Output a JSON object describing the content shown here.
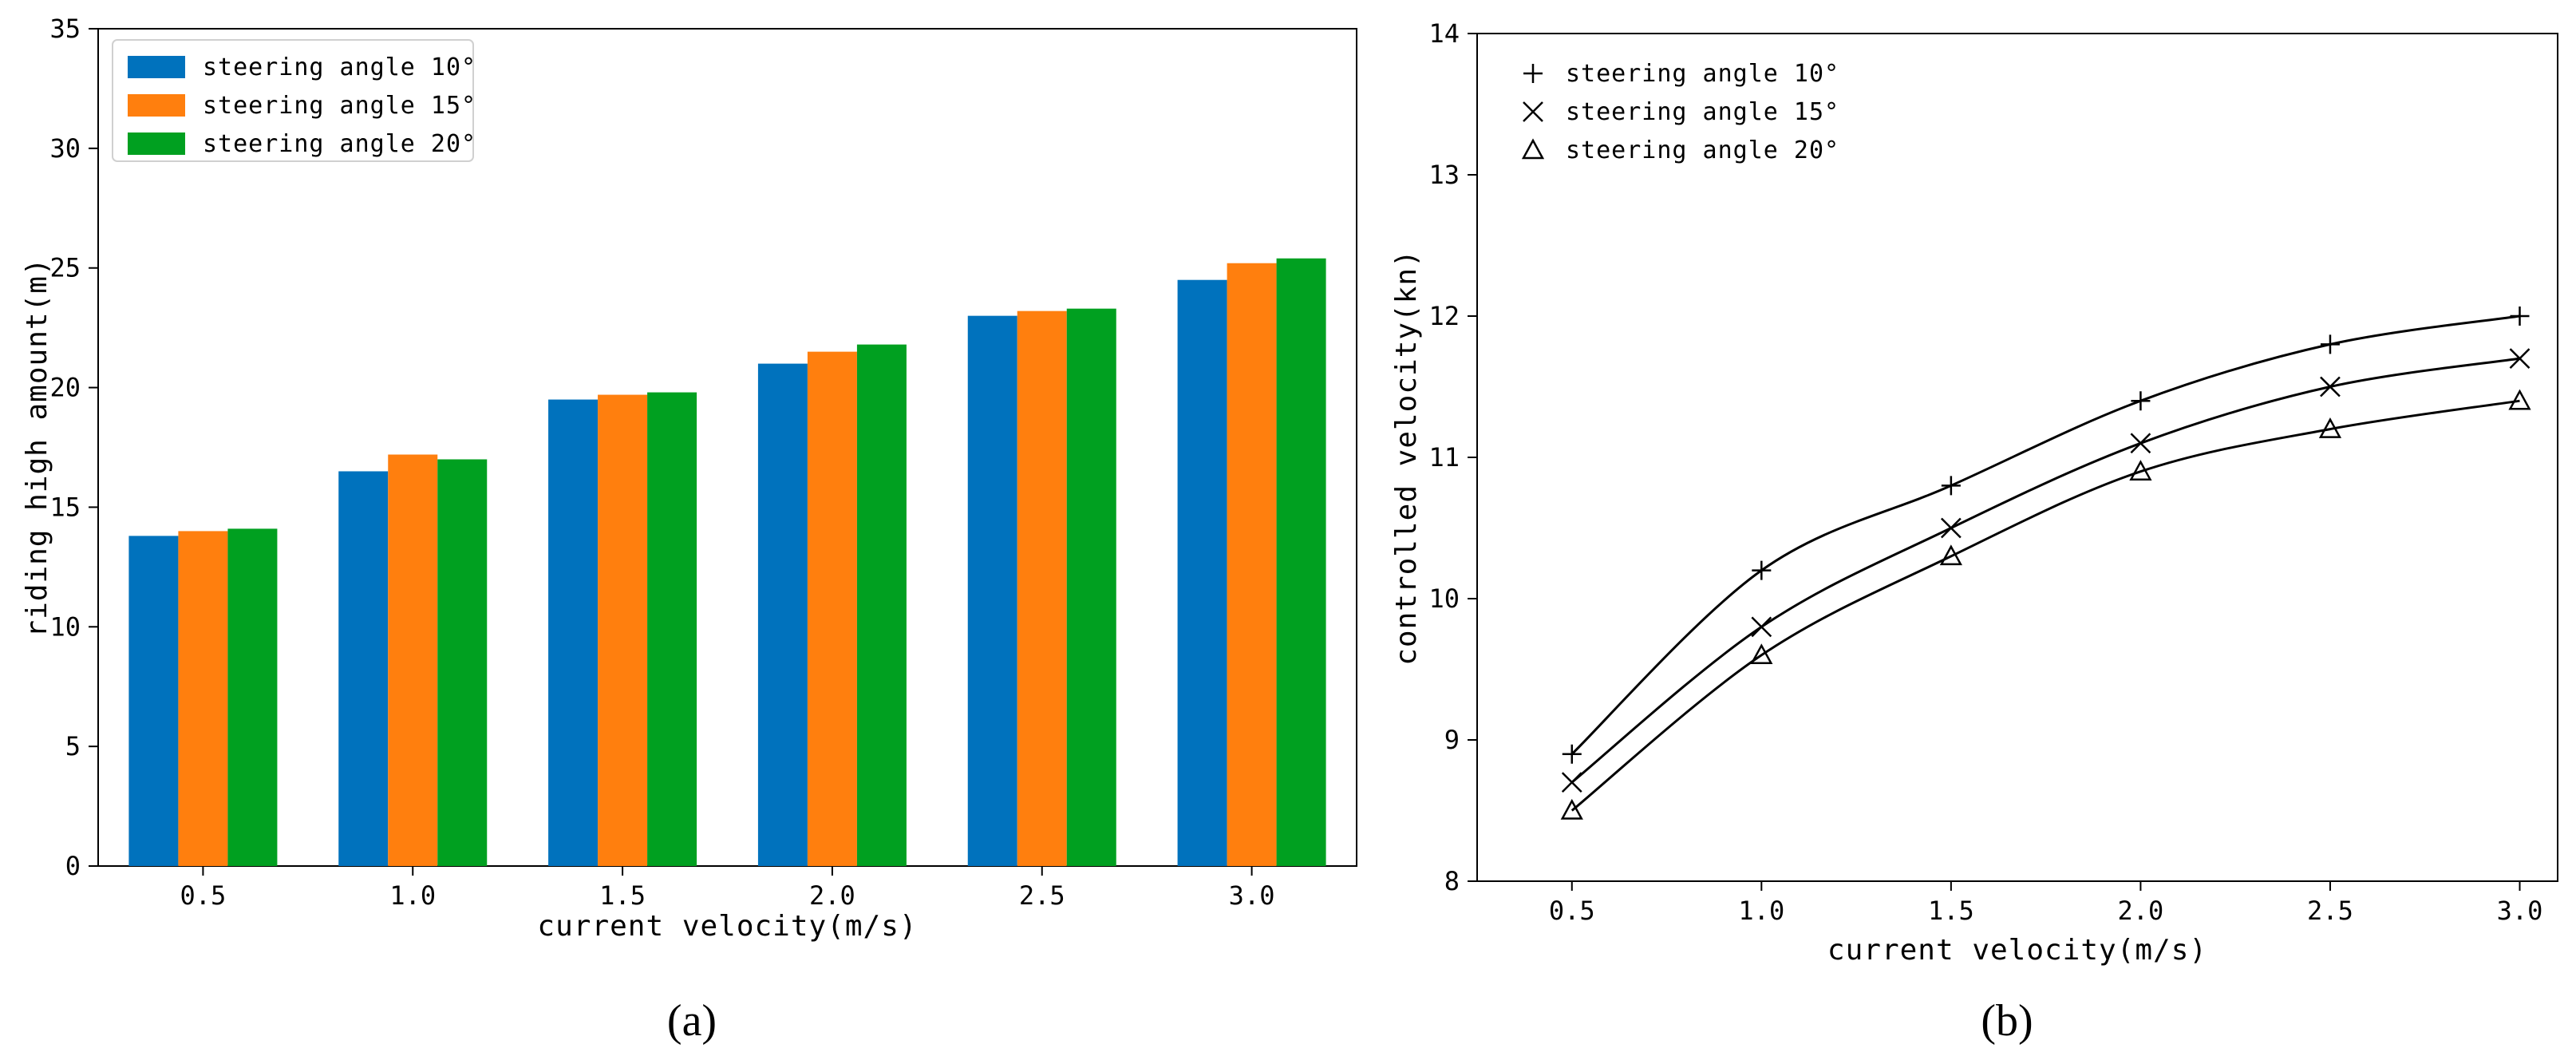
{
  "chart_data": [
    {
      "type": "bar",
      "panel_label": "a",
      "title": "",
      "xlabel": "current velocity(m/s)",
      "ylabel": "riding high amount(m)",
      "categories": [
        "0.5",
        "1.0",
        "1.5",
        "2.0",
        "2.5",
        "3.0"
      ],
      "ylim": [
        0,
        35
      ],
      "yticks": [
        "0",
        "5",
        "10",
        "15",
        "20",
        "25",
        "30",
        "35"
      ],
      "grid": false,
      "legend_position": "top-left",
      "series": [
        {
          "name": "steering angle 10°",
          "color": "#0072BD",
          "values": [
            13.8,
            16.5,
            19.5,
            21.0,
            23.0,
            24.5
          ]
        },
        {
          "name": "steering angle 15°",
          "color": "#FF7F0E",
          "values": [
            14.0,
            17.2,
            19.7,
            21.5,
            23.2,
            25.2
          ]
        },
        {
          "name": "steering angle 20°",
          "color": "#00A020",
          "values": [
            14.1,
            17.0,
            19.8,
            21.8,
            23.3,
            25.4
          ]
        }
      ]
    },
    {
      "type": "line",
      "panel_label": "b",
      "title": "",
      "xlabel": "current velocity(m/s)",
      "ylabel": "controlled velocity(kn)",
      "x": [
        0.5,
        1.0,
        1.5,
        2.0,
        2.5,
        3.0
      ],
      "xticks": [
        "0.5",
        "1.0",
        "1.5",
        "2.0",
        "2.5",
        "3.0"
      ],
      "xlim": [
        0.25,
        3.1
      ],
      "ylim": [
        8,
        14
      ],
      "yticks": [
        "8",
        "9",
        "10",
        "11",
        "12",
        "13",
        "14"
      ],
      "grid": false,
      "legend_position": "top-left",
      "series": [
        {
          "name": "steering angle 10°",
          "marker": "plus",
          "values": [
            8.9,
            10.2,
            10.8,
            11.4,
            11.8,
            12.0
          ]
        },
        {
          "name": "steering angle 15°",
          "marker": "cross",
          "values": [
            8.7,
            9.8,
            10.5,
            11.1,
            11.5,
            11.7
          ]
        },
        {
          "name": "steering angle 20°",
          "marker": "triangle",
          "values": [
            8.5,
            9.6,
            10.3,
            10.9,
            11.2,
            11.4
          ]
        }
      ]
    }
  ]
}
